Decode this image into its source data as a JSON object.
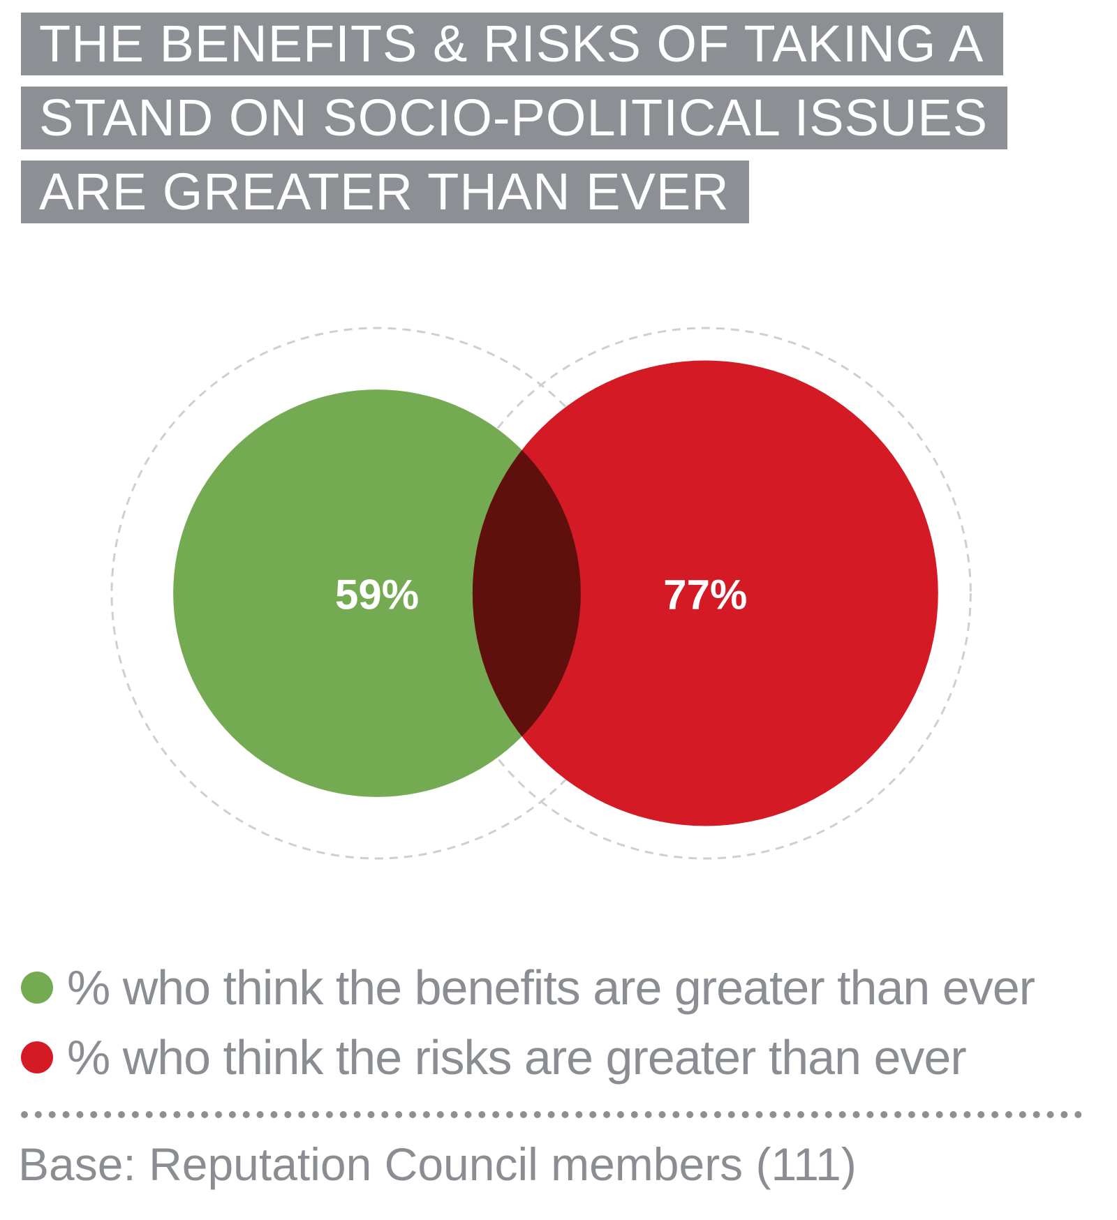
{
  "title_lines": [
    "THE BENEFITS & RISKS OF TAKING A",
    "STAND ON SOCIO-POLITICAL ISSUES",
    "ARE GREATER THAN EVER"
  ],
  "chart_data": {
    "type": "venn",
    "max_value": 100,
    "series": [
      {
        "name": "% who think the benefits are greater than ever",
        "value": 59,
        "label": "59%",
        "color": "#74aa51"
      },
      {
        "name": "% who think the risks are greater than ever",
        "value": 77,
        "label": "77%",
        "color": "#d31a25"
      }
    ],
    "overlap_color": "#5f0f0c",
    "reference_circle_value": 100,
    "legend_position": "bottom"
  },
  "legend": [
    {
      "label": "% who think the benefits are greater than ever",
      "color": "#74aa51"
    },
    {
      "label": "% who think the risks are greater than ever",
      "color": "#d31a25"
    }
  ],
  "footnote": "Base: Reputation Council members (111)",
  "colors": {
    "title_bg": "#8c8f93",
    "text_gray": "#8a8d91",
    "dashed": "#cfcfcf"
  }
}
